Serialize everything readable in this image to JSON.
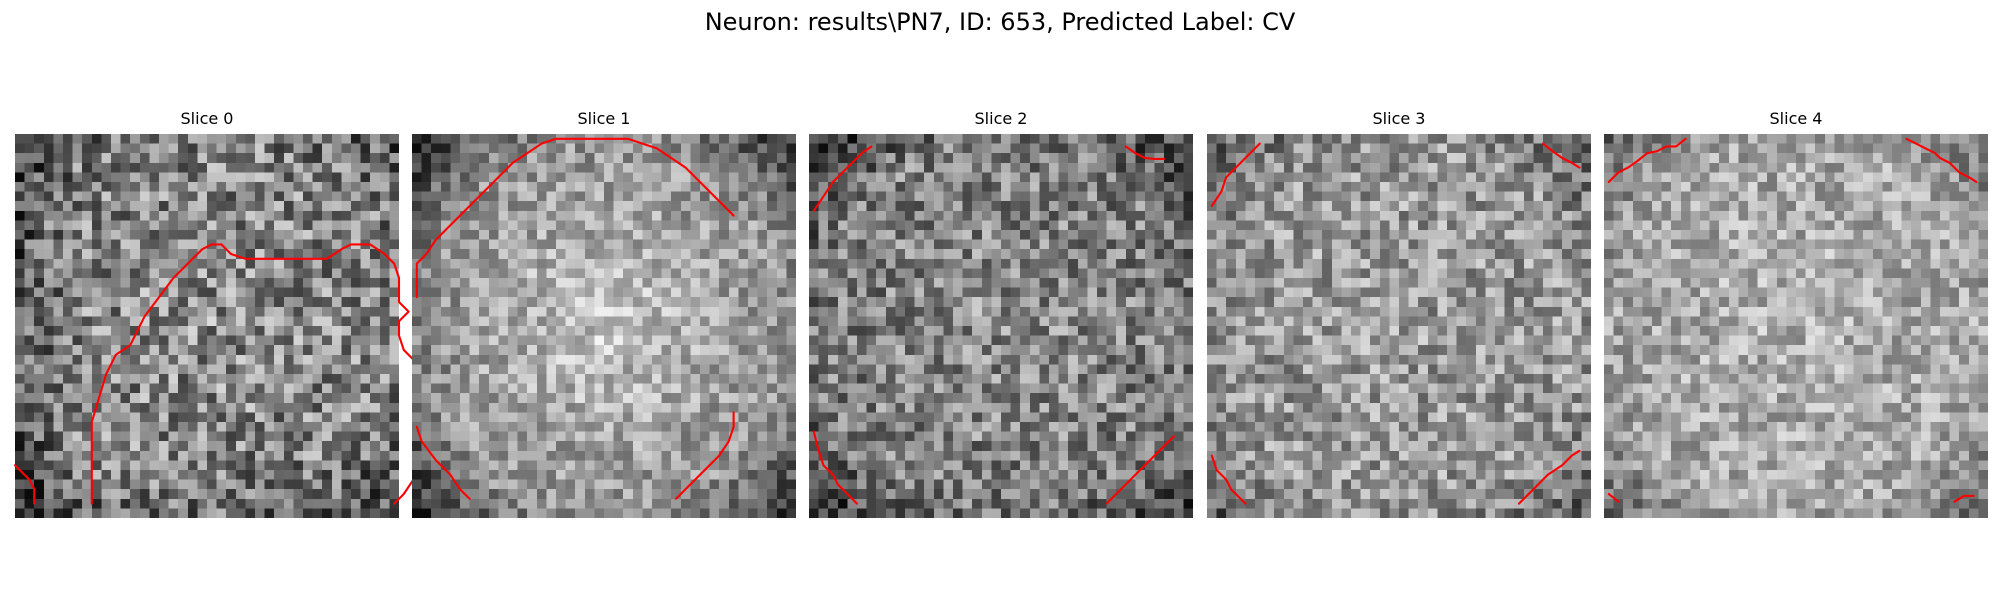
{
  "figure": {
    "title": "Neuron: results\\PN7, ID: 653, Predicted Label: CV",
    "contour_color": "#ff0000",
    "colormap": "gray"
  },
  "slices": [
    {
      "title": "Slice 0",
      "brightness": "medium, dark patches on left edge and bottom",
      "contour": [
        [
          [
            8,
            38.5
          ],
          [
            8,
            30
          ],
          [
            9.5,
            25
          ],
          [
            10.5,
            23
          ],
          [
            12,
            22
          ],
          [
            13.5,
            19
          ],
          [
            15,
            17
          ],
          [
            16.5,
            15
          ],
          [
            18,
            13.5
          ],
          [
            19.5,
            12
          ],
          [
            20.5,
            11.5
          ],
          [
            21.5,
            11.5
          ],
          [
            22.5,
            12.5
          ],
          [
            24,
            13
          ],
          [
            27,
            13
          ],
          [
            30,
            13
          ],
          [
            32.5,
            13
          ],
          [
            34,
            12
          ],
          [
            35,
            11.5
          ],
          [
            37,
            11.5
          ],
          [
            38.5,
            12.5
          ],
          [
            39.5,
            13.5
          ],
          [
            40,
            15
          ],
          [
            40,
            17.5
          ],
          [
            41,
            18.5
          ],
          [
            40,
            19.5
          ],
          [
            40,
            21
          ],
          [
            40.5,
            22.5
          ],
          [
            41.5,
            23.5
          ],
          [
            41.5,
            28
          ],
          [
            41.5,
            33.5
          ],
          [
            41.5,
            36
          ],
          [
            40.5,
            37.5
          ],
          [
            39.5,
            38.5
          ]
        ],
        [
          [
            2,
            38.5
          ],
          [
            2,
            37
          ],
          [
            1.5,
            36
          ],
          [
            0.5,
            35
          ],
          [
            0,
            34.5
          ]
        ]
      ]
    },
    {
      "title": "Slice 1",
      "brightness": "bright central blob, dark corners",
      "contour": [
        [
          [
            0.5,
            17
          ],
          [
            0.5,
            13.5
          ],
          [
            1.5,
            12.5
          ],
          [
            2.5,
            11
          ],
          [
            3.5,
            10
          ],
          [
            4.5,
            9
          ],
          [
            6,
            7.5
          ],
          [
            7.5,
            6
          ],
          [
            9,
            4.5
          ],
          [
            10.5,
            3
          ],
          [
            12,
            2
          ],
          [
            13.5,
            1
          ],
          [
            15,
            0.5
          ],
          [
            17.5,
            0.5
          ],
          [
            20,
            0.5
          ],
          [
            22.5,
            0.5
          ],
          [
            24,
            1
          ],
          [
            25.5,
            1.5
          ],
          [
            27,
            2.5
          ],
          [
            28.5,
            3.5
          ],
          [
            30,
            5
          ],
          [
            31.5,
            6.5
          ],
          [
            33,
            8
          ],
          [
            33.5,
            8.5
          ]
        ],
        [
          [
            0.5,
            30.5
          ],
          [
            1,
            32
          ],
          [
            2.5,
            34
          ],
          [
            4,
            35.5
          ],
          [
            5,
            37
          ],
          [
            6,
            38
          ]
        ],
        [
          [
            27.5,
            38
          ],
          [
            29,
            36.5
          ],
          [
            30.5,
            35
          ],
          [
            32,
            33.5
          ],
          [
            33,
            32
          ],
          [
            33.5,
            30.5
          ],
          [
            33.5,
            29
          ]
        ]
      ]
    },
    {
      "title": "Slice 2",
      "brightness": "medium with dark corners",
      "contour": [
        [
          [
            0.5,
            8
          ],
          [
            1.5,
            6.5
          ],
          [
            2.5,
            5
          ],
          [
            3.5,
            4
          ],
          [
            4.5,
            3
          ],
          [
            5.5,
            2
          ],
          [
            6.5,
            1.3
          ]
        ],
        [
          [
            33,
            1.3
          ],
          [
            34,
            2
          ],
          [
            35,
            2.5
          ],
          [
            36,
            2.6
          ],
          [
            37,
            2.6
          ]
        ],
        [
          [
            0.5,
            31
          ],
          [
            1,
            33
          ],
          [
            1.5,
            34.5
          ],
          [
            2.5,
            35.5
          ],
          [
            3,
            36.5
          ],
          [
            4,
            37.5
          ],
          [
            5,
            38.5
          ]
        ],
        [
          [
            31,
            38.5
          ],
          [
            32.5,
            37
          ],
          [
            34,
            35.5
          ],
          [
            35.5,
            34
          ],
          [
            37,
            32.5
          ],
          [
            38,
            31.5
          ]
        ]
      ]
    },
    {
      "title": "Slice 3",
      "brightness": "medium-bright, dark corners",
      "contour": [
        [
          [
            0.5,
            7.5
          ],
          [
            1.5,
            6
          ],
          [
            2,
            4.5
          ],
          [
            3,
            3.5
          ],
          [
            4,
            2.5
          ],
          [
            5,
            1.5
          ],
          [
            5.5,
            1
          ]
        ],
        [
          [
            35,
            1
          ],
          [
            36,
            1.8
          ],
          [
            37,
            2.5
          ],
          [
            38,
            3
          ],
          [
            38.8,
            3.5
          ]
        ],
        [
          [
            0.5,
            33.5
          ],
          [
            1,
            35
          ],
          [
            2,
            36
          ],
          [
            2.5,
            37
          ],
          [
            3.5,
            38
          ],
          [
            4,
            38.5
          ]
        ],
        [
          [
            32.5,
            38.5
          ],
          [
            34,
            37
          ],
          [
            35.5,
            35.5
          ],
          [
            37,
            34.5
          ],
          [
            38,
            33.5
          ],
          [
            38.8,
            33
          ]
        ]
      ]
    },
    {
      "title": "Slice 4",
      "brightness": "bright overall, dark corners",
      "contour": [
        [
          [
            0.5,
            5
          ],
          [
            1.5,
            4
          ],
          [
            2.5,
            3.5
          ],
          [
            3.5,
            2.8
          ],
          [
            4.5,
            2
          ],
          [
            5.5,
            1.8
          ],
          [
            6.5,
            1.3
          ],
          [
            7.5,
            1.3
          ],
          [
            8.5,
            0.5
          ]
        ],
        [
          [
            31.5,
            0.5
          ],
          [
            32.5,
            1
          ],
          [
            33.5,
            1.5
          ],
          [
            34.5,
            2
          ],
          [
            35,
            2.5
          ],
          [
            36,
            3
          ],
          [
            37,
            4
          ],
          [
            38,
            4.5
          ],
          [
            38.8,
            5
          ]
        ],
        [
          [
            0.5,
            37.5
          ],
          [
            1.5,
            38.3
          ]
        ],
        [
          [
            36.5,
            38.3
          ],
          [
            37.5,
            37.7
          ],
          [
            38.5,
            37.7
          ]
        ]
      ]
    }
  ]
}
